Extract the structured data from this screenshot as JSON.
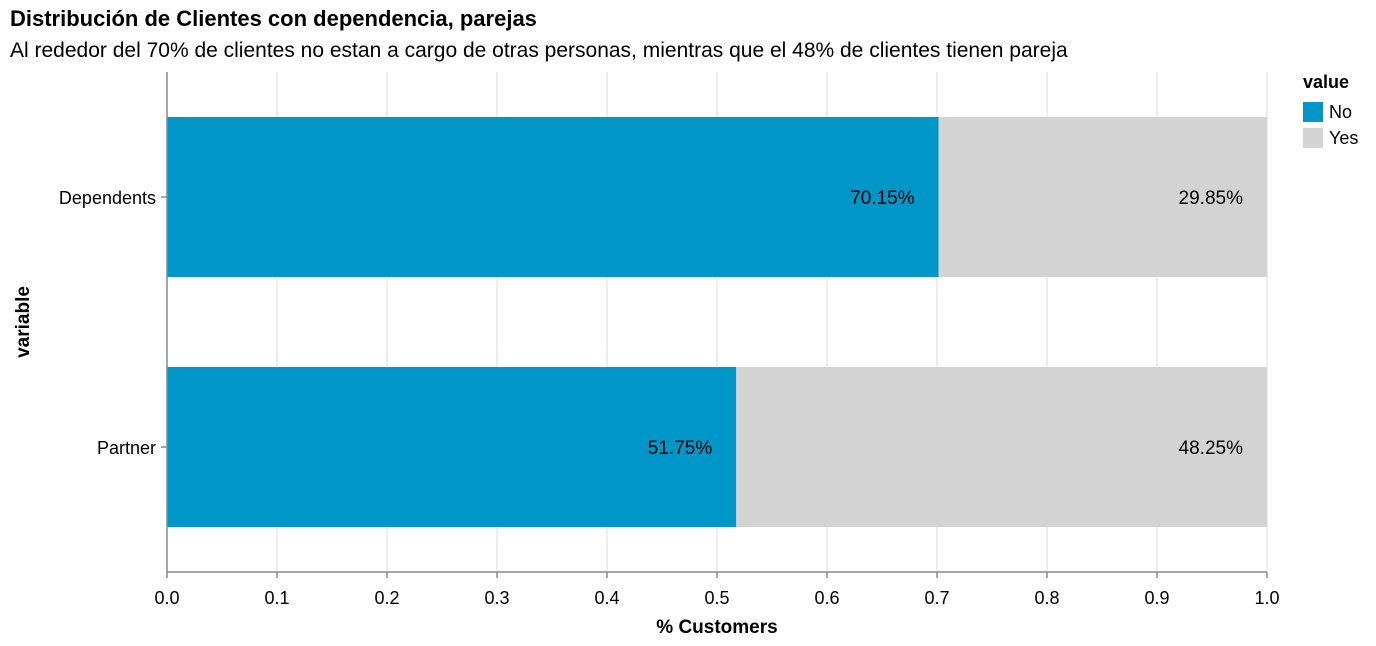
{
  "chart_data": {
    "type": "bar",
    "orientation": "horizontal",
    "stacked": true,
    "title": "Distribución de Clientes con dependencia, parejas",
    "subtitle": "Al rededor del 70% de clientes no estan a cargo de otras personas, mientras que el 48% de clientes tienen pareja",
    "xlabel": "% Customers",
    "ylabel": "variable",
    "xlim": [
      0,
      1
    ],
    "xticks": [
      "0.0",
      "0.1",
      "0.2",
      "0.3",
      "0.4",
      "0.5",
      "0.6",
      "0.7",
      "0.8",
      "0.9",
      "1.0"
    ],
    "grid": true,
    "categories": [
      "Dependents",
      "Partner"
    ],
    "legend": {
      "title": "value",
      "position": "top-right"
    },
    "series": [
      {
        "name": "No",
        "color": "#0096c8",
        "values": [
          0.7015,
          0.5175
        ],
        "labels": [
          "70.15%",
          "51.75%"
        ]
      },
      {
        "name": "Yes",
        "color": "#d3d3d3",
        "values": [
          0.2985,
          0.4825
        ],
        "labels": [
          "29.85%",
          "48.25%"
        ]
      }
    ]
  }
}
